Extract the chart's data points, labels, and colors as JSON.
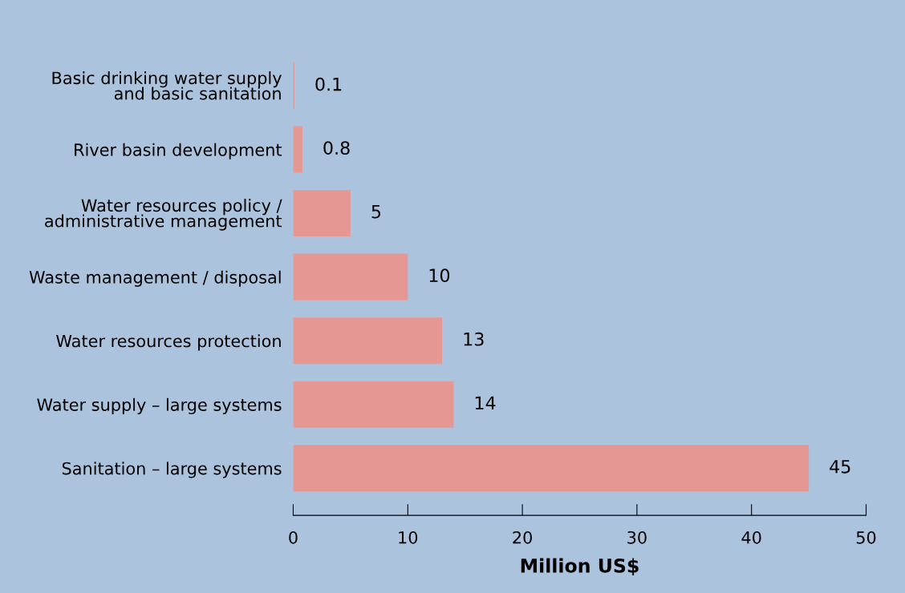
{
  "chart_data": {
    "type": "bar",
    "orientation": "horizontal",
    "xlabel": "Million US$",
    "categories": [
      "Basic drinking water supply\nand basic sanitation",
      "River basin development",
      "Water resources policy /\nadministrative management",
      "Waste management / disposal",
      "Water resources protection",
      "Water supply – large systems",
      "Sanitation – large systems"
    ],
    "values": [
      0.1,
      0.8,
      5,
      10,
      13,
      14,
      45
    ],
    "color": "#e59793",
    "xlim": [
      0,
      50
    ],
    "xticks": [
      0,
      10,
      20,
      30,
      40,
      50
    ],
    "grid": false,
    "data_labels": true
  }
}
